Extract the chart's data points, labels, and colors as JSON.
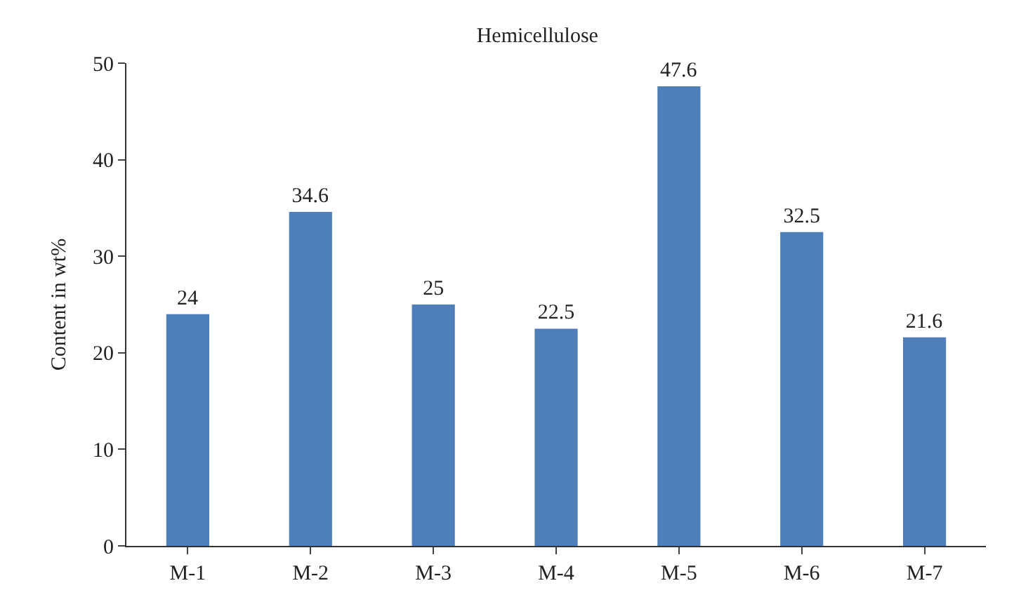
{
  "chart_data": {
    "type": "bar",
    "title": "Hemicellulose",
    "ylabel": "Content in wt%",
    "categories": [
      "M-1",
      "M-2",
      "M-3",
      "M-4",
      "M-5",
      "M-6",
      "M-7"
    ],
    "values": [
      24,
      34.6,
      25,
      22.5,
      47.6,
      32.5,
      21.6
    ],
    "color": "#4f7fb8",
    "ylim": [
      0,
      50
    ],
    "yticks": [
      0,
      10,
      20,
      30,
      40,
      50
    ],
    "data_labels": true
  }
}
